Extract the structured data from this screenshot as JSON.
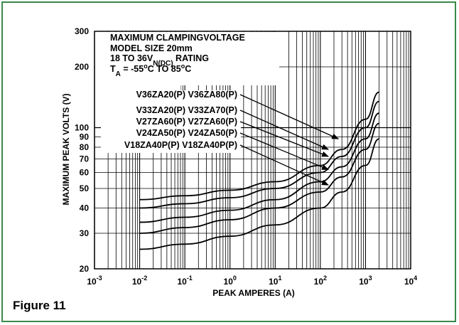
{
  "figure_label": "Figure 11",
  "colors": {
    "frame_border": "#3a8a4a",
    "ink": "#000000",
    "background": "#ffffff"
  },
  "chart_data": {
    "type": "line",
    "title": "MAXIMUM CLAMPING VOLTAGE",
    "title_lines": [
      "MAXIMUM CLAMPINGVOLTAGE",
      "MODEL SIZE 20mm",
      "18 TO 36V",
      "N(DC)",
      "RATING",
      "T",
      "A",
      "= -55",
      "o",
      "C TO 85",
      "o",
      "C"
    ],
    "xlabel": "PEAK AMPERES (A)",
    "ylabel": "MAXIMUM PEAK VOLTS (V)",
    "x_scale": "log",
    "y_scale": "log",
    "xlim": [
      0.001,
      10000
    ],
    "ylim": [
      20,
      300
    ],
    "grid": true,
    "x_ticks": [
      {
        "value": 0.001,
        "base": "10",
        "exp": "-3"
      },
      {
        "value": 0.01,
        "base": "10",
        "exp": "-2"
      },
      {
        "value": 0.1,
        "base": "10",
        "exp": "-1"
      },
      {
        "value": 1,
        "base": "10",
        "exp": "0"
      },
      {
        "value": 10,
        "base": "10",
        "exp": "1"
      },
      {
        "value": 100,
        "base": "10",
        "exp": "2"
      },
      {
        "value": 1000,
        "base": "10",
        "exp": "3"
      },
      {
        "value": 10000,
        "base": "10",
        "exp": "4"
      }
    ],
    "y_ticks": [
      {
        "value": 300,
        "label": "300"
      },
      {
        "value": 200,
        "label": "200"
      },
      {
        "value": 100,
        "label": "100"
      },
      {
        "value": 90,
        "label": "90"
      },
      {
        "value": 80,
        "label": "80"
      },
      {
        "value": 70,
        "label": "70"
      },
      {
        "value": 60,
        "label": "60"
      },
      {
        "value": 50,
        "label": "50"
      },
      {
        "value": 40,
        "label": "40"
      },
      {
        "value": 30,
        "label": "30"
      },
      {
        "value": 20,
        "label": "20"
      }
    ],
    "series": [
      {
        "name": "V36ZA20(P) V36ZA80(P)",
        "x": [
          0.01,
          0.1,
          1,
          10,
          100,
          300,
          1000,
          2000
        ],
        "y": [
          44,
          46,
          49,
          54,
          65,
          78,
          110,
          150
        ]
      },
      {
        "name": "V33ZA20(P) V33ZA70(P)",
        "x": [
          0.01,
          0.1,
          1,
          10,
          100,
          300,
          1000,
          2000
        ],
        "y": [
          40,
          42,
          45,
          50,
          60,
          72,
          100,
          135
        ]
      },
      {
        "name": "V27ZA60(P) V27ZA60(P)",
        "x": [
          0.01,
          0.1,
          1,
          10,
          100,
          300,
          1000,
          2000
        ],
        "y": [
          34,
          36,
          39,
          44,
          54,
          64,
          88,
          118
        ]
      },
      {
        "name": "V24ZA50(P) V24ZA50(P)",
        "x": [
          0.01,
          0.1,
          1,
          10,
          100,
          300,
          1000,
          2000
        ],
        "y": [
          30,
          32,
          35,
          40,
          48,
          57,
          78,
          105
        ]
      },
      {
        "name": "V18ZA40P(P) V18ZA40P(P)",
        "x": [
          0.01,
          0.1,
          1,
          10,
          100,
          300,
          1000,
          2000
        ],
        "y": [
          25,
          26.5,
          29,
          33,
          40,
          48,
          65,
          88
        ]
      }
    ],
    "annotations": [
      {
        "label": "V36ZA20(P) V36ZA80(P)",
        "arrow_to": {
          "x": 250,
          "y": 88
        }
      },
      {
        "label": "V33ZA20(P) V33ZA70(P)",
        "arrow_to": {
          "x": 150,
          "y": 78
        }
      },
      {
        "label": "V27ZA60(P) V27ZA60(P)",
        "arrow_to": {
          "x": 150,
          "y": 72
        }
      },
      {
        "label": "V24ZA50(P) V24ZA50(P)",
        "arrow_to": {
          "x": 150,
          "y": 62
        }
      },
      {
        "label": "V18ZA40P(P) V18ZA40P(P)",
        "arrow_to": {
          "x": 150,
          "y": 52
        }
      }
    ]
  }
}
